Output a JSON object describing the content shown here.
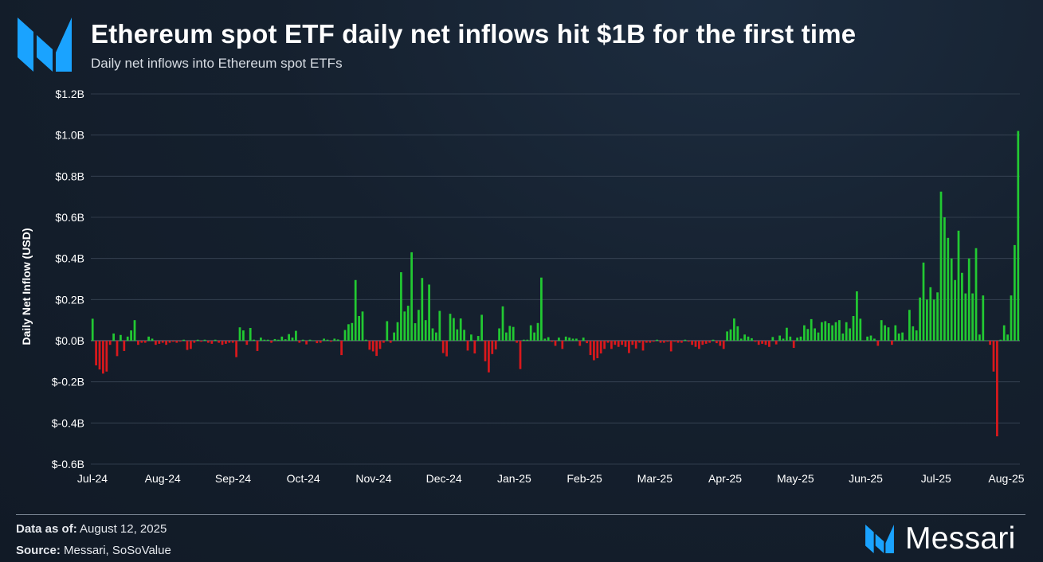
{
  "header": {
    "title": "Ethereum spot ETF daily net inflows hit $1B for the first time",
    "subtitle": "Daily net inflows into Ethereum spot ETFs"
  },
  "footer": {
    "data_as_of_label": "Data as of:",
    "data_as_of_value": "August 12, 2025",
    "source_label": "Source:",
    "source_value": "Messari, SoSoValue",
    "brand": "Messari"
  },
  "colors": {
    "positive": "#22c932",
    "negative": "#d9181c",
    "logo": "#1aa3ff"
  },
  "chart_data": {
    "type": "bar",
    "title": "Ethereum spot ETF daily net inflows hit $1B for the first time",
    "subtitle": "Daily net inflows into Ethereum spot ETFs",
    "ylabel": "Daily Net Inflow (USD)",
    "xlabel": "",
    "unit": "billion USD",
    "ylim": [
      -0.6,
      1.2
    ],
    "y_ticks": [
      1.2,
      1.0,
      0.8,
      0.6,
      0.4,
      0.2,
      0.0,
      -0.2,
      -0.4,
      -0.6
    ],
    "y_tick_labels": [
      "$1.2B",
      "$1.0B",
      "$0.8B",
      "$0.6B",
      "$0.4B",
      "$0.2B",
      "$0.0B",
      "$-0.2B",
      "$-0.4B",
      "$-0.6B"
    ],
    "x_tick_labels": [
      "Jul-24",
      "Aug-24",
      "Sep-24",
      "Oct-24",
      "Nov-24",
      "Dec-24",
      "Jan-25",
      "Feb-25",
      "Mar-25",
      "Apr-25",
      "May-25",
      "Jun-25",
      "Jul-25",
      "Aug-25"
    ],
    "grid": true,
    "legend": "none",
    "values": [
      0.107,
      -0.12,
      -0.14,
      -0.16,
      -0.15,
      -0.02,
      0.035,
      -0.075,
      0.028,
      -0.05,
      0.02,
      0.05,
      0.1,
      -0.02,
      -0.01,
      -0.01,
      0.02,
      0.01,
      -0.02,
      -0.015,
      -0.01,
      -0.02,
      -0.01,
      -0.005,
      -0.01,
      -0.005,
      0.005,
      -0.045,
      -0.04,
      -0.01,
      0.005,
      -0.005,
      0.005,
      -0.01,
      -0.015,
      0.005,
      -0.01,
      -0.02,
      -0.015,
      -0.01,
      -0.01,
      -0.08,
      0.065,
      0.05,
      -0.02,
      0.062,
      0.005,
      -0.05,
      0.015,
      0.005,
      0.005,
      -0.01,
      0.008,
      0.005,
      0.02,
      0.007,
      0.032,
      0.015,
      0.048,
      -0.01,
      0.005,
      -0.018,
      0.005,
      0.002,
      -0.012,
      -0.01,
      0.01,
      0.005,
      -0.005,
      0.01,
      0.006,
      -0.07,
      0.052,
      0.08,
      0.086,
      0.295,
      0.12,
      0.142,
      0.005,
      -0.044,
      -0.052,
      -0.074,
      -0.04,
      -0.01,
      0.095,
      -0.01,
      0.04,
      0.09,
      0.333,
      0.142,
      0.17,
      0.43,
      0.085,
      0.15,
      0.305,
      0.1,
      0.273,
      0.06,
      0.04,
      0.145,
      -0.06,
      -0.076,
      0.131,
      0.11,
      0.055,
      0.108,
      0.053,
      -0.048,
      0.03,
      -0.062,
      0.023,
      0.126,
      -0.1,
      -0.154,
      -0.065,
      -0.042,
      0.06,
      0.167,
      0.04,
      0.072,
      0.067,
      -0.01,
      -0.138,
      0.005,
      0.005,
      0.075,
      0.04,
      0.086,
      0.307,
      0.01,
      0.017,
      -0.005,
      -0.025,
      0.015,
      -0.04,
      0.02,
      0.015,
      0.01,
      0.01,
      -0.025,
      0.015,
      -0.012,
      -0.07,
      -0.095,
      -0.085,
      -0.062,
      -0.04,
      -0.01,
      -0.04,
      -0.02,
      -0.03,
      -0.02,
      -0.03,
      -0.06,
      -0.02,
      -0.038,
      -0.01,
      -0.048,
      -0.01,
      -0.01,
      -0.005,
      0.005,
      -0.01,
      -0.01,
      -0.005,
      -0.052,
      -0.005,
      -0.01,
      -0.01,
      0.005,
      -0.005,
      -0.02,
      -0.03,
      -0.04,
      -0.02,
      -0.015,
      -0.01,
      0.005,
      -0.012,
      -0.025,
      -0.04,
      0.045,
      0.055,
      0.108,
      0.07,
      0.01,
      0.03,
      0.02,
      0.012,
      -0.005,
      -0.02,
      -0.015,
      -0.02,
      -0.03,
      0.018,
      -0.018,
      0.025,
      0.01,
      0.063,
      0.02,
      -0.035,
      0.015,
      0.02,
      0.075,
      0.057,
      0.105,
      0.06,
      0.04,
      0.09,
      0.095,
      0.085,
      0.075,
      0.09,
      0.1,
      0.035,
      0.09,
      0.06,
      0.12,
      0.24,
      0.107,
      0.002,
      0.02,
      0.025,
      0.01,
      -0.025,
      0.1,
      0.075,
      0.065,
      -0.02,
      0.075,
      0.035,
      0.04,
      0.005,
      0.15,
      0.07,
      0.05,
      0.21,
      0.38,
      0.2,
      0.26,
      0.2,
      0.235,
      0.725,
      0.6,
      0.5,
      0.4,
      0.295,
      0.535,
      0.33,
      0.23,
      0.4,
      0.23,
      0.45,
      0.03,
      0.22,
      0.002,
      -0.02,
      -0.15,
      -0.465,
      0.005,
      0.075,
      0.03,
      0.22,
      0.465,
      1.02
    ]
  }
}
